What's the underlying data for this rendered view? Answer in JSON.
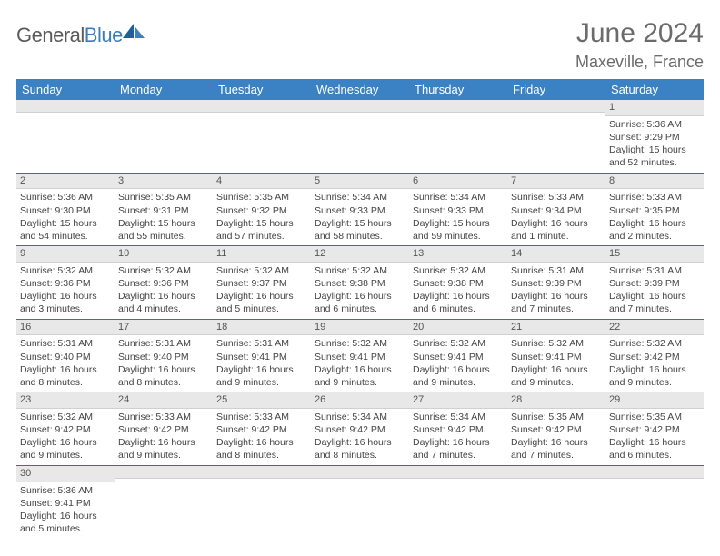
{
  "logo": {
    "text1": "General",
    "text2": "Blue"
  },
  "title": "June 2024",
  "location": "Maxeville, France",
  "weekday_headers": [
    "Sunday",
    "Monday",
    "Tuesday",
    "Wednesday",
    "Thursday",
    "Friday",
    "Saturday"
  ],
  "colors": {
    "header_bg": "#3a82c4",
    "header_text": "#ffffff",
    "daynum_bg": "#e8e8e8",
    "row_border": "#3a6ea5",
    "title_color": "#6b6b6b",
    "body_text": "#444444"
  },
  "weeks": [
    [
      {
        "day": "",
        "sunrise": "",
        "sunset": "",
        "daylight": ""
      },
      {
        "day": "",
        "sunrise": "",
        "sunset": "",
        "daylight": ""
      },
      {
        "day": "",
        "sunrise": "",
        "sunset": "",
        "daylight": ""
      },
      {
        "day": "",
        "sunrise": "",
        "sunset": "",
        "daylight": ""
      },
      {
        "day": "",
        "sunrise": "",
        "sunset": "",
        "daylight": ""
      },
      {
        "day": "",
        "sunrise": "",
        "sunset": "",
        "daylight": ""
      },
      {
        "day": "1",
        "sunrise": "Sunrise: 5:36 AM",
        "sunset": "Sunset: 9:29 PM",
        "daylight": "Daylight: 15 hours and 52 minutes."
      }
    ],
    [
      {
        "day": "2",
        "sunrise": "Sunrise: 5:36 AM",
        "sunset": "Sunset: 9:30 PM",
        "daylight": "Daylight: 15 hours and 54 minutes."
      },
      {
        "day": "3",
        "sunrise": "Sunrise: 5:35 AM",
        "sunset": "Sunset: 9:31 PM",
        "daylight": "Daylight: 15 hours and 55 minutes."
      },
      {
        "day": "4",
        "sunrise": "Sunrise: 5:35 AM",
        "sunset": "Sunset: 9:32 PM",
        "daylight": "Daylight: 15 hours and 57 minutes."
      },
      {
        "day": "5",
        "sunrise": "Sunrise: 5:34 AM",
        "sunset": "Sunset: 9:33 PM",
        "daylight": "Daylight: 15 hours and 58 minutes."
      },
      {
        "day": "6",
        "sunrise": "Sunrise: 5:34 AM",
        "sunset": "Sunset: 9:33 PM",
        "daylight": "Daylight: 15 hours and 59 minutes."
      },
      {
        "day": "7",
        "sunrise": "Sunrise: 5:33 AM",
        "sunset": "Sunset: 9:34 PM",
        "daylight": "Daylight: 16 hours and 1 minute."
      },
      {
        "day": "8",
        "sunrise": "Sunrise: 5:33 AM",
        "sunset": "Sunset: 9:35 PM",
        "daylight": "Daylight: 16 hours and 2 minutes."
      }
    ],
    [
      {
        "day": "9",
        "sunrise": "Sunrise: 5:32 AM",
        "sunset": "Sunset: 9:36 PM",
        "daylight": "Daylight: 16 hours and 3 minutes."
      },
      {
        "day": "10",
        "sunrise": "Sunrise: 5:32 AM",
        "sunset": "Sunset: 9:36 PM",
        "daylight": "Daylight: 16 hours and 4 minutes."
      },
      {
        "day": "11",
        "sunrise": "Sunrise: 5:32 AM",
        "sunset": "Sunset: 9:37 PM",
        "daylight": "Daylight: 16 hours and 5 minutes."
      },
      {
        "day": "12",
        "sunrise": "Sunrise: 5:32 AM",
        "sunset": "Sunset: 9:38 PM",
        "daylight": "Daylight: 16 hours and 6 minutes."
      },
      {
        "day": "13",
        "sunrise": "Sunrise: 5:32 AM",
        "sunset": "Sunset: 9:38 PM",
        "daylight": "Daylight: 16 hours and 6 minutes."
      },
      {
        "day": "14",
        "sunrise": "Sunrise: 5:31 AM",
        "sunset": "Sunset: 9:39 PM",
        "daylight": "Daylight: 16 hours and 7 minutes."
      },
      {
        "day": "15",
        "sunrise": "Sunrise: 5:31 AM",
        "sunset": "Sunset: 9:39 PM",
        "daylight": "Daylight: 16 hours and 7 minutes."
      }
    ],
    [
      {
        "day": "16",
        "sunrise": "Sunrise: 5:31 AM",
        "sunset": "Sunset: 9:40 PM",
        "daylight": "Daylight: 16 hours and 8 minutes."
      },
      {
        "day": "17",
        "sunrise": "Sunrise: 5:31 AM",
        "sunset": "Sunset: 9:40 PM",
        "daylight": "Daylight: 16 hours and 8 minutes."
      },
      {
        "day": "18",
        "sunrise": "Sunrise: 5:31 AM",
        "sunset": "Sunset: 9:41 PM",
        "daylight": "Daylight: 16 hours and 9 minutes."
      },
      {
        "day": "19",
        "sunrise": "Sunrise: 5:32 AM",
        "sunset": "Sunset: 9:41 PM",
        "daylight": "Daylight: 16 hours and 9 minutes."
      },
      {
        "day": "20",
        "sunrise": "Sunrise: 5:32 AM",
        "sunset": "Sunset: 9:41 PM",
        "daylight": "Daylight: 16 hours and 9 minutes."
      },
      {
        "day": "21",
        "sunrise": "Sunrise: 5:32 AM",
        "sunset": "Sunset: 9:41 PM",
        "daylight": "Daylight: 16 hours and 9 minutes."
      },
      {
        "day": "22",
        "sunrise": "Sunrise: 5:32 AM",
        "sunset": "Sunset: 9:42 PM",
        "daylight": "Daylight: 16 hours and 9 minutes."
      }
    ],
    [
      {
        "day": "23",
        "sunrise": "Sunrise: 5:32 AM",
        "sunset": "Sunset: 9:42 PM",
        "daylight": "Daylight: 16 hours and 9 minutes."
      },
      {
        "day": "24",
        "sunrise": "Sunrise: 5:33 AM",
        "sunset": "Sunset: 9:42 PM",
        "daylight": "Daylight: 16 hours and 9 minutes."
      },
      {
        "day": "25",
        "sunrise": "Sunrise: 5:33 AM",
        "sunset": "Sunset: 9:42 PM",
        "daylight": "Daylight: 16 hours and 8 minutes."
      },
      {
        "day": "26",
        "sunrise": "Sunrise: 5:34 AM",
        "sunset": "Sunset: 9:42 PM",
        "daylight": "Daylight: 16 hours and 8 minutes."
      },
      {
        "day": "27",
        "sunrise": "Sunrise: 5:34 AM",
        "sunset": "Sunset: 9:42 PM",
        "daylight": "Daylight: 16 hours and 7 minutes."
      },
      {
        "day": "28",
        "sunrise": "Sunrise: 5:35 AM",
        "sunset": "Sunset: 9:42 PM",
        "daylight": "Daylight: 16 hours and 7 minutes."
      },
      {
        "day": "29",
        "sunrise": "Sunrise: 5:35 AM",
        "sunset": "Sunset: 9:42 PM",
        "daylight": "Daylight: 16 hours and 6 minutes."
      }
    ],
    [
      {
        "day": "30",
        "sunrise": "Sunrise: 5:36 AM",
        "sunset": "Sunset: 9:41 PM",
        "daylight": "Daylight: 16 hours and 5 minutes."
      },
      {
        "day": "",
        "sunrise": "",
        "sunset": "",
        "daylight": ""
      },
      {
        "day": "",
        "sunrise": "",
        "sunset": "",
        "daylight": ""
      },
      {
        "day": "",
        "sunrise": "",
        "sunset": "",
        "daylight": ""
      },
      {
        "day": "",
        "sunrise": "",
        "sunset": "",
        "daylight": ""
      },
      {
        "day": "",
        "sunrise": "",
        "sunset": "",
        "daylight": ""
      },
      {
        "day": "",
        "sunrise": "",
        "sunset": "",
        "daylight": ""
      }
    ]
  ]
}
